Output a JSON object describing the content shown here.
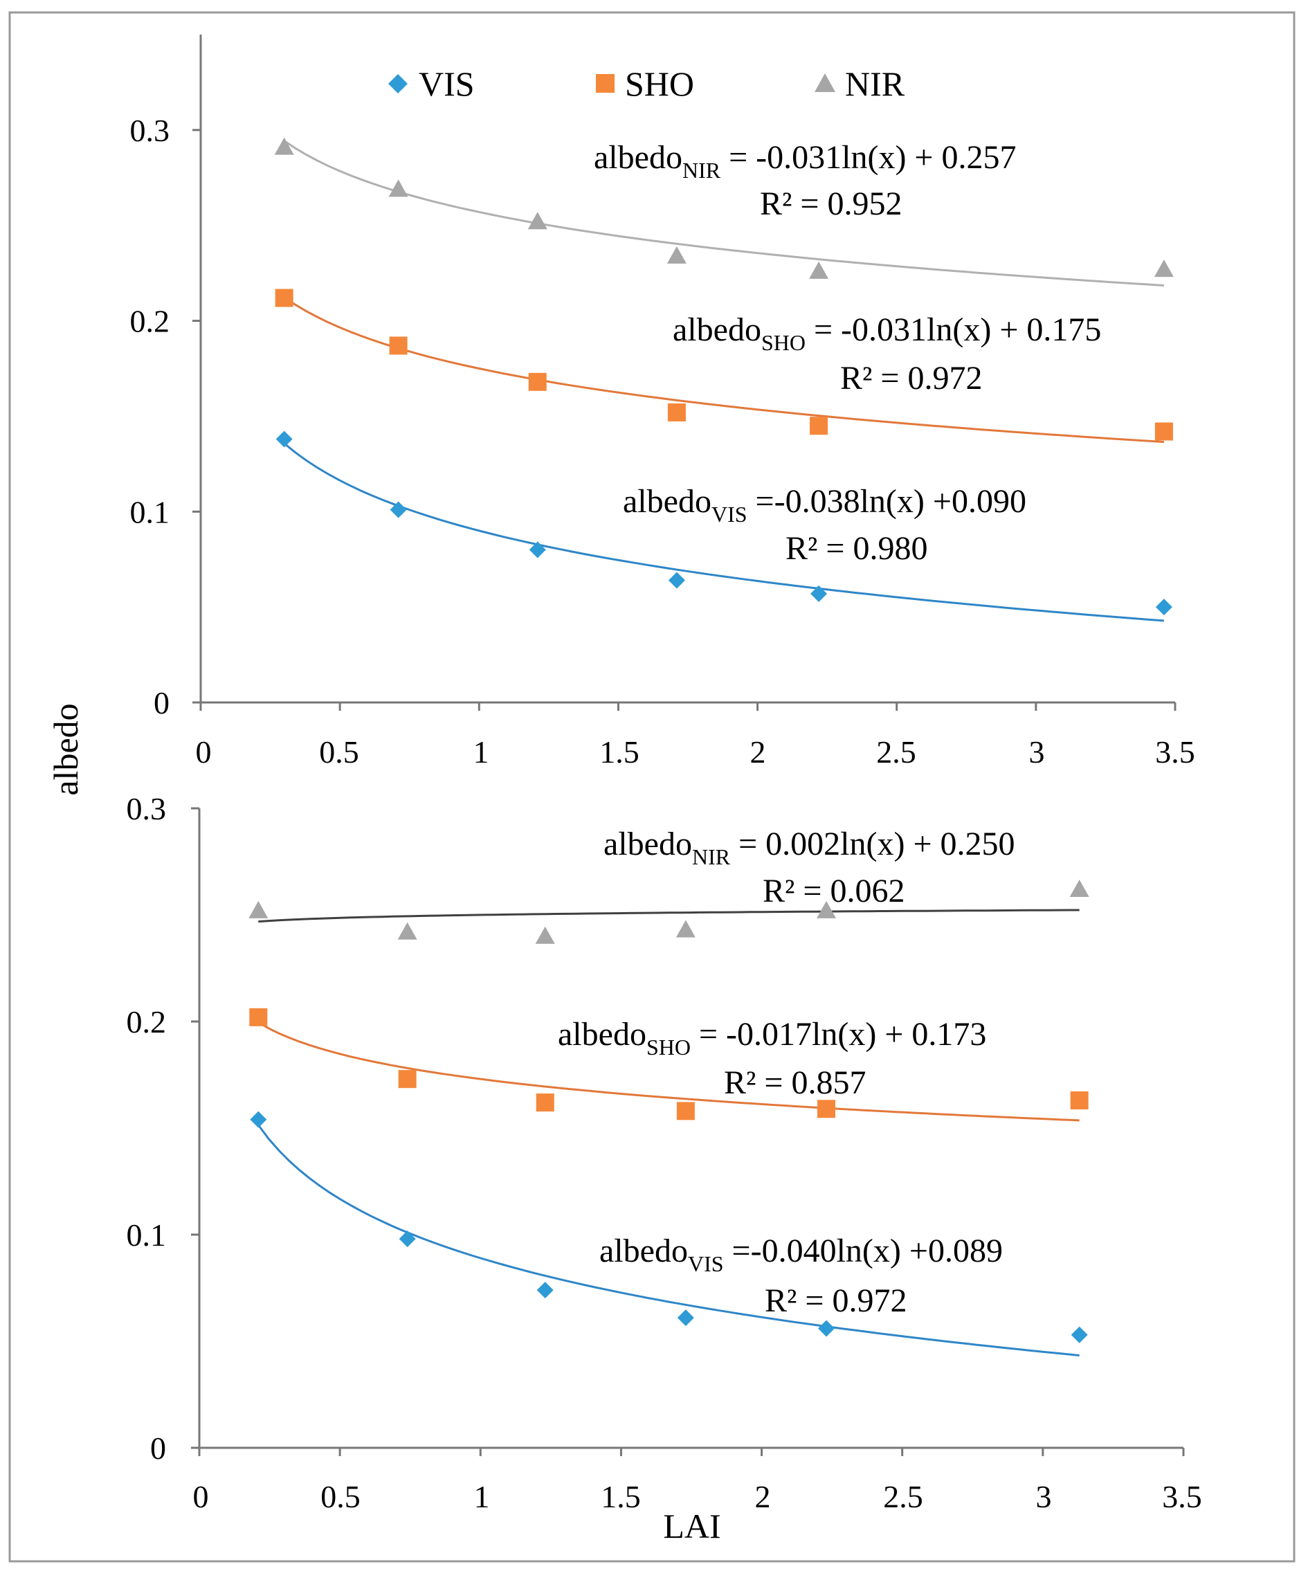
{
  "figure": {
    "xlabel": "LAI",
    "ylabel": "albedo"
  },
  "legend": [
    {
      "label": "VIS",
      "color": "#2e9bd6",
      "marker": "diamond"
    },
    {
      "label": "SHO",
      "color": "#f5873a",
      "marker": "square"
    },
    {
      "label": "NIR",
      "color": "#a6a6a6",
      "marker": "triangle"
    }
  ],
  "chart_data": [
    {
      "type": "scatter",
      "position": "top",
      "xlim": [
        0,
        3.5
      ],
      "ylim": [
        0,
        0.35
      ],
      "x_ticks": [
        "0",
        "0.5",
        "1",
        "1.5",
        "2",
        "2.5",
        "3",
        "3.5"
      ],
      "y_ticks": [
        "0",
        "0.1",
        "0.2",
        "0.3"
      ],
      "grid": false,
      "legend_position": "top",
      "series": [
        {
          "name": "VIS",
          "color": "#2e9bd6",
          "marker": "diamond",
          "trend_color": "#2e86c8",
          "x": [
            0.3,
            0.71,
            1.21,
            1.71,
            2.22,
            3.46
          ],
          "y": [
            0.138,
            0.101,
            0.08,
            0.064,
            0.057,
            0.05
          ],
          "fit": {
            "a": -0.038,
            "b": 0.09
          },
          "eq_label": {
            "prefix": "albedo",
            "sub": "VIS",
            "rest": " =-0.038ln(x)  +0.090",
            "r2": "R² = 0.980"
          }
        },
        {
          "name": "SHO",
          "color": "#f5873a",
          "marker": "square",
          "trend_color": "#e2783a",
          "x": [
            0.3,
            0.71,
            1.21,
            1.71,
            2.22,
            3.46
          ],
          "y": [
            0.212,
            0.187,
            0.168,
            0.152,
            0.145,
            0.142
          ],
          "fit": {
            "a": -0.031,
            "b": 0.175
          },
          "eq_label": {
            "prefix": "albedo",
            "sub": "SHO",
            "rest": " = -0.031ln(x)  + 0.175",
            "r2": "R² = 0.972"
          }
        },
        {
          "name": "NIR",
          "color": "#a6a6a6",
          "marker": "triangle",
          "trend_color": "#b0b0b0",
          "x": [
            0.3,
            0.71,
            1.21,
            1.71,
            2.22,
            3.46
          ],
          "y": [
            0.291,
            0.269,
            0.252,
            0.234,
            0.226,
            0.227
          ],
          "fit": {
            "a": -0.031,
            "b": 0.257
          },
          "eq_label": {
            "prefix": "albedo",
            "sub": "NIR",
            "rest": " = -0.031ln(x)  + 0.257",
            "r2": "R² = 0.952"
          }
        }
      ]
    },
    {
      "type": "scatter",
      "position": "bottom",
      "xlim": [
        0,
        3.5
      ],
      "ylim": [
        0,
        0.3
      ],
      "x_ticks": [
        "0",
        "0.5",
        "1",
        "1.5",
        "2",
        "2.5",
        "3",
        "3.5"
      ],
      "y_ticks": [
        "0",
        "0.1",
        "0.2",
        "0.3"
      ],
      "grid": false,
      "series": [
        {
          "name": "VIS",
          "color": "#2e9bd6",
          "marker": "diamond",
          "trend_color": "#2e86c8",
          "x": [
            0.21,
            0.74,
            1.23,
            1.73,
            2.23,
            3.13
          ],
          "y": [
            0.154,
            0.098,
            0.074,
            0.061,
            0.056,
            0.053
          ],
          "fit": {
            "a": -0.04,
            "b": 0.089
          },
          "eq_label": {
            "prefix": "albedo",
            "sub": "VIS",
            "rest": " =-0.040ln(x)  +0.089",
            "r2": "R² = 0.972"
          }
        },
        {
          "name": "SHO",
          "color": "#f5873a",
          "marker": "square",
          "trend_color": "#e2783a",
          "x": [
            0.21,
            0.74,
            1.23,
            1.73,
            2.23,
            3.13
          ],
          "y": [
            0.202,
            0.173,
            0.162,
            0.158,
            0.159,
            0.163
          ],
          "fit": {
            "a": -0.017,
            "b": 0.173
          },
          "eq_label": {
            "prefix": "albedo",
            "sub": "SHO",
            "rest": " = -0.017ln(x)  + 0.173",
            "r2": "R² = 0.857"
          }
        },
        {
          "name": "NIR",
          "color": "#a6a6a6",
          "marker": "triangle",
          "trend_color": "#404040",
          "x": [
            0.21,
            0.74,
            1.23,
            1.73,
            2.23,
            3.13
          ],
          "y": [
            0.252,
            0.242,
            0.24,
            0.243,
            0.252,
            0.262
          ],
          "fit": {
            "a": 0.002,
            "b": 0.25
          },
          "eq_label": {
            "prefix": "albedo",
            "sub": "NIR",
            "rest": " = 0.002ln(x)  + 0.250",
            "r2": "R² = 0.062"
          }
        }
      ]
    }
  ]
}
